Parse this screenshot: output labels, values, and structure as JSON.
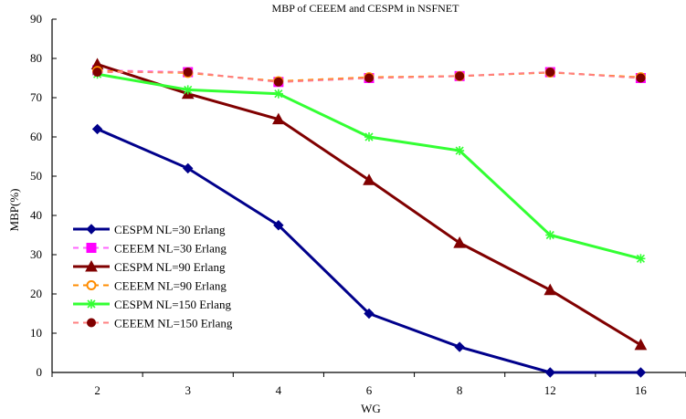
{
  "chart_data": {
    "type": "line",
    "title": "MBP of CEEEM and CESPM in NSFNET",
    "xlabel": "WG",
    "ylabel": "MBP(%)",
    "categories": [
      "2",
      "3",
      "4",
      "6",
      "8",
      "12",
      "16"
    ],
    "ylim": [
      0,
      90
    ],
    "yticks": [
      0,
      10,
      20,
      30,
      40,
      50,
      60,
      70,
      80,
      90
    ],
    "grid": false,
    "legend_position": "lower-left",
    "series": [
      {
        "name": "CESPM NL=30 Erlang",
        "values": [
          62,
          52,
          37.5,
          15,
          6.5,
          0,
          0
        ],
        "color": "#00008B",
        "marker": "diamond",
        "dash": "solid",
        "marker_fill": "#00008B"
      },
      {
        "name": "CEEEM NL=30 Erlang",
        "values": [
          77,
          76.5,
          74,
          75,
          75.5,
          76.5,
          75
        ],
        "color": "#FF66FF",
        "marker": "square",
        "dash": "dashed",
        "marker_fill": "#FF00FF"
      },
      {
        "name": "CESPM NL=90 Erlang",
        "values": [
          78.5,
          71,
          64.5,
          49,
          33,
          21,
          7
        ],
        "color": "#800000",
        "marker": "triangle",
        "dash": "solid",
        "marker_fill": "#800000"
      },
      {
        "name": "CEEEM NL=90 Erlang",
        "values": [
          76.8,
          76.3,
          74.2,
          75.2,
          75.5,
          76.4,
          75.2
        ],
        "color": "#FF8C00",
        "marker": "circle-open",
        "dash": "dashed",
        "marker_fill": "none"
      },
      {
        "name": "CESPM NL=150 Erlang",
        "values": [
          76,
          72,
          71,
          60,
          56.5,
          35,
          29
        ],
        "color": "#33FF33",
        "marker": "star",
        "dash": "solid",
        "marker_fill": "#33FF33"
      },
      {
        "name": "CEEEM NL=150 Erlang",
        "values": [
          76.5,
          76.5,
          74,
          75,
          75.5,
          76.5,
          75
        ],
        "color": "#FF8080",
        "marker": "circle",
        "dash": "dashed",
        "marker_fill": "#800000"
      }
    ]
  }
}
